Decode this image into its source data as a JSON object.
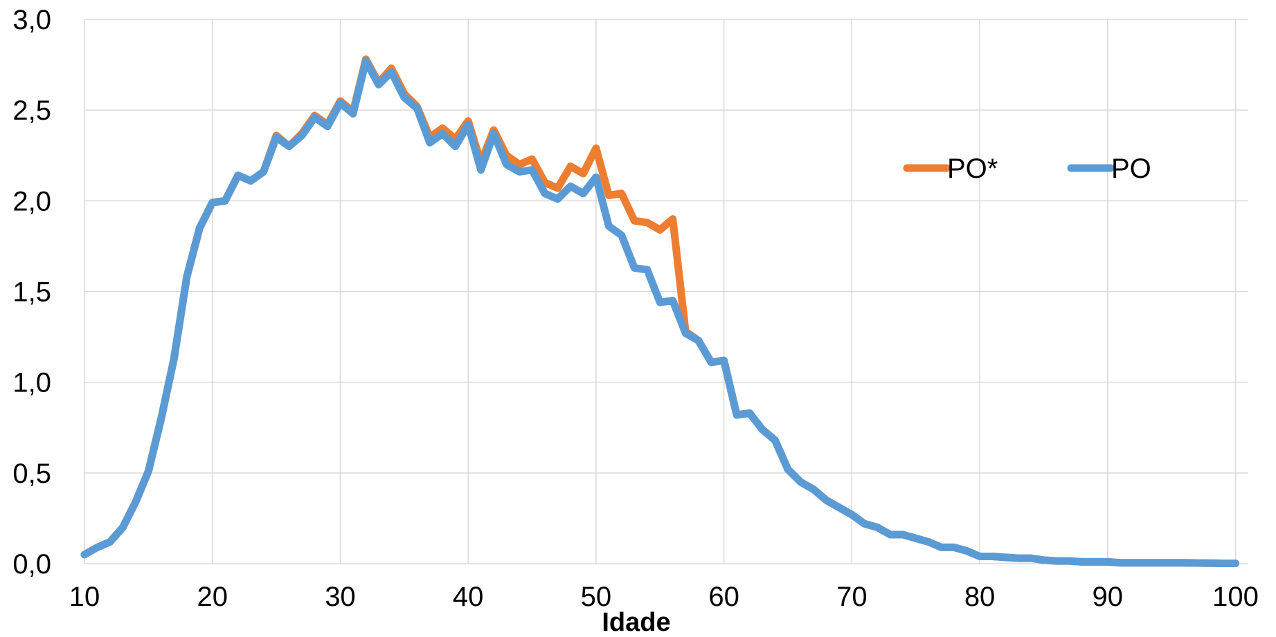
{
  "chart_data": {
    "type": "line",
    "xlabel": "Idade",
    "ylabel": "",
    "title": "",
    "xlim": [
      10,
      101
    ],
    "ylim": [
      0,
      3.0
    ],
    "x_ticks": [
      10,
      20,
      30,
      40,
      50,
      60,
      70,
      80,
      90,
      100
    ],
    "x_tick_labels": [
      "10",
      "20",
      "30",
      "40",
      "50",
      "60",
      "70",
      "80",
      "90",
      "100"
    ],
    "y_ticks": [
      0,
      0.5,
      1.0,
      1.5,
      2.0,
      2.5,
      3.0
    ],
    "y_tick_labels": [
      "0,0",
      "0,5",
      "1,0",
      "1,5",
      "2,0",
      "2,5",
      "3,0"
    ],
    "grid": true,
    "legend_position": "center-right",
    "x": [
      10,
      11,
      12,
      13,
      14,
      15,
      16,
      17,
      18,
      19,
      20,
      21,
      22,
      23,
      24,
      25,
      26,
      27,
      28,
      29,
      30,
      31,
      32,
      33,
      34,
      35,
      36,
      37,
      38,
      39,
      40,
      41,
      42,
      43,
      44,
      45,
      46,
      47,
      48,
      49,
      50,
      51,
      52,
      53,
      54,
      55,
      56,
      57,
      58,
      59,
      60,
      61,
      62,
      63,
      64,
      65,
      66,
      67,
      68,
      69,
      70,
      71,
      72,
      73,
      74,
      75,
      76,
      77,
      78,
      79,
      80,
      81,
      82,
      83,
      84,
      85,
      86,
      87,
      88,
      89,
      90,
      91,
      92,
      93,
      94,
      95,
      96,
      97,
      98,
      99,
      100
    ],
    "series": [
      {
        "name": "PO*",
        "color": "#ed7d31",
        "values": [
          0.05,
          0.09,
          0.12,
          0.2,
          0.34,
          0.51,
          0.8,
          1.13,
          1.58,
          1.85,
          1.99,
          2.0,
          2.14,
          2.11,
          2.16,
          2.36,
          2.3,
          2.37,
          2.47,
          2.42,
          2.55,
          2.49,
          2.78,
          2.65,
          2.73,
          2.59,
          2.52,
          2.35,
          2.4,
          2.34,
          2.44,
          2.21,
          2.39,
          2.25,
          2.2,
          2.23,
          2.1,
          2.07,
          2.19,
          2.15,
          2.29,
          2.03,
          2.04,
          1.89,
          1.88,
          1.84,
          1.9,
          1.28,
          1.23,
          1.11,
          1.12,
          0.82,
          0.83,
          0.74,
          0.68,
          0.52,
          0.45,
          0.41,
          0.35,
          0.31,
          0.27,
          0.22,
          0.2,
          0.16,
          0.16,
          0.14,
          0.12,
          0.09,
          0.09,
          0.07,
          0.04,
          0.04,
          0.035,
          0.03,
          0.03,
          0.02,
          0.015,
          0.015,
          0.01,
          0.01,
          0.01,
          0.005,
          0.005,
          0.005,
          0.005,
          0.005,
          0.005,
          0.004,
          0.003,
          0.002,
          0.002
        ]
      },
      {
        "name": "PO",
        "color": "#5b9bd5",
        "values": [
          0.05,
          0.09,
          0.12,
          0.2,
          0.34,
          0.51,
          0.8,
          1.13,
          1.58,
          1.85,
          1.99,
          2.0,
          2.14,
          2.11,
          2.16,
          2.35,
          2.3,
          2.36,
          2.46,
          2.41,
          2.54,
          2.48,
          2.77,
          2.64,
          2.71,
          2.57,
          2.51,
          2.32,
          2.37,
          2.3,
          2.42,
          2.17,
          2.37,
          2.2,
          2.16,
          2.17,
          2.04,
          2.01,
          2.08,
          2.04,
          2.13,
          1.86,
          1.81,
          1.63,
          1.62,
          1.44,
          1.45,
          1.27,
          1.23,
          1.11,
          1.12,
          0.82,
          0.83,
          0.74,
          0.68,
          0.52,
          0.45,
          0.41,
          0.35,
          0.31,
          0.27,
          0.22,
          0.2,
          0.16,
          0.16,
          0.14,
          0.12,
          0.09,
          0.09,
          0.07,
          0.04,
          0.04,
          0.035,
          0.03,
          0.03,
          0.02,
          0.015,
          0.015,
          0.01,
          0.01,
          0.01,
          0.005,
          0.005,
          0.005,
          0.005,
          0.005,
          0.005,
          0.004,
          0.003,
          0.002,
          0.002
        ]
      }
    ]
  }
}
